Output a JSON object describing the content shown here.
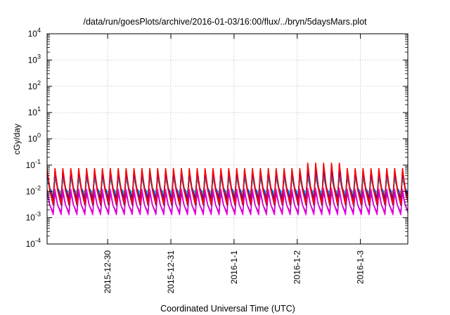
{
  "chart_data": {
    "type": "line",
    "title": "/data/run/goesPlots/archive/2016-01-03/16:00/flux/../bryn/5daysMars.plot",
    "xlabel": "Coordinated Universal Time (UTC)",
    "ylabel": "cGy/day",
    "yscale": "log",
    "ylim": [
      0.0001,
      10000
    ],
    "xlim": [
      "2015-12-29T01:00",
      "2016-01-03T18:00"
    ],
    "x_ticks": [
      {
        "label": "2015-12-30",
        "date": "2015-12-30T00:00"
      },
      {
        "label": "2015-12-31",
        "date": "2015-12-31T00:00"
      },
      {
        "label": "2016-1-1",
        "date": "2016-01-01T00:00"
      },
      {
        "label": "2016-1-2",
        "date": "2016-01-02T00:00"
      },
      {
        "label": "2016-1-3",
        "date": "2016-01-03T00:00"
      }
    ],
    "y_ticks": [
      {
        "base": "10",
        "exp": "-4",
        "value": 0.0001
      },
      {
        "base": "10",
        "exp": "-3",
        "value": 0.001
      },
      {
        "base": "10",
        "exp": "-2",
        "value": 0.01
      },
      {
        "base": "10",
        "exp": "-1",
        "value": 0.1
      },
      {
        "base": "10",
        "exp": "0",
        "value": 1
      },
      {
        "base": "10",
        "exp": "1",
        "value": 10
      },
      {
        "base": "10",
        "exp": "2",
        "value": 100
      },
      {
        "base": "10",
        "exp": "3",
        "value": 1000
      },
      {
        "base": "10",
        "exp": "4",
        "value": 10000
      }
    ],
    "grid": true,
    "legend": "none",
    "series_style": "repeating sawtooth pulses, roughly every 3 hours",
    "series": [
      {
        "color": "#ff0000",
        "peak": 0.075,
        "trough": 0.0035,
        "jan2_peak": 0.12
      },
      {
        "color": "#8b1a1a",
        "peak": 0.065,
        "trough": 0.003,
        "jan2_peak": 0.09
      },
      {
        "color": "#0000ff",
        "peak": 0.06,
        "trough": 0.005,
        "jan2_peak": 0.075
      },
      {
        "color": "#1e90ff",
        "peak": 0.045,
        "trough": 0.0065,
        "jan2_peak": 0.05
      },
      {
        "color": "#00ced1",
        "peak": 0.03,
        "trough": 0.009,
        "jan2_peak": 0.032
      },
      {
        "color": "#ff00ff",
        "peak": 0.012,
        "trough": 0.0013,
        "jan2_peak": 0.013
      },
      {
        "color": "#cc00cc",
        "peak": 0.009,
        "trough": 0.0016,
        "jan2_peak": 0.01
      }
    ]
  }
}
